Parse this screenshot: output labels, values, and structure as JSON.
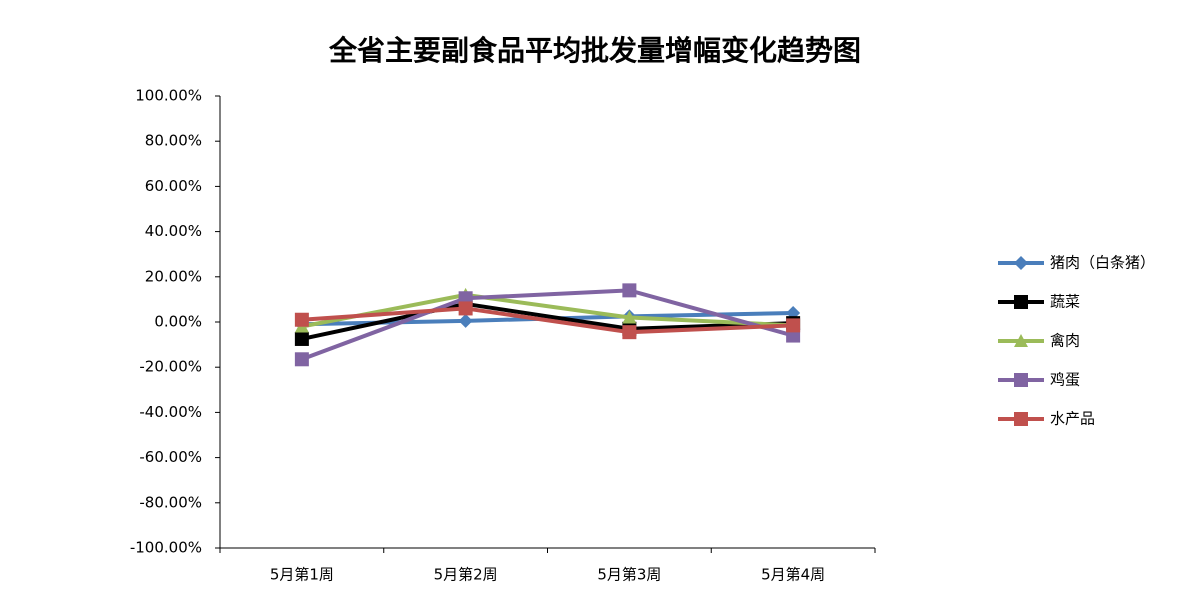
{
  "chart_data": {
    "type": "line",
    "title": "全省主要副食品平均批发量增幅变化趋势图",
    "categories": [
      "5月第1周",
      "5月第2周",
      "5月第3周",
      "5月第4周"
    ],
    "series": [
      {
        "name": "猪肉（白条猪）",
        "color": "#4a7ebb",
        "marker": "diamond",
        "values": [
          -1,
          0.5,
          2.5,
          4
        ]
      },
      {
        "name": "蔬菜",
        "color": "#000000",
        "marker": "square",
        "values": [
          -7.5,
          8,
          -3,
          -0.5
        ]
      },
      {
        "name": "禽肉",
        "color": "#9bbb59",
        "marker": "triangle",
        "values": [
          -2,
          12,
          2,
          -1.5
        ]
      },
      {
        "name": "鸡蛋",
        "color": "#8064a2",
        "marker": "square",
        "values": [
          -16.5,
          10.5,
          14,
          -6
        ]
      },
      {
        "name": "水产品",
        "color": "#c0504d",
        "marker": "square",
        "values": [
          1,
          6,
          -4.5,
          -1.5
        ]
      }
    ],
    "ylim": [
      -100,
      100
    ],
    "yticks": [
      {
        "value": -100,
        "label": "-100.00%"
      },
      {
        "value": -80,
        "label": "-80.00%"
      },
      {
        "value": -60,
        "label": "-60.00%"
      },
      {
        "value": -40,
        "label": "-40.00%"
      },
      {
        "value": -20,
        "label": "-20.00%"
      },
      {
        "value": 0,
        "label": "0.00%"
      },
      {
        "value": 20,
        "label": "20.00%"
      },
      {
        "value": 40,
        "label": "40.00%"
      },
      {
        "value": 60,
        "label": "60.00%"
      },
      {
        "value": 80,
        "label": "80.00%"
      },
      {
        "value": 100,
        "label": "100.00%"
      }
    ],
    "grid": false,
    "legend": "right"
  }
}
